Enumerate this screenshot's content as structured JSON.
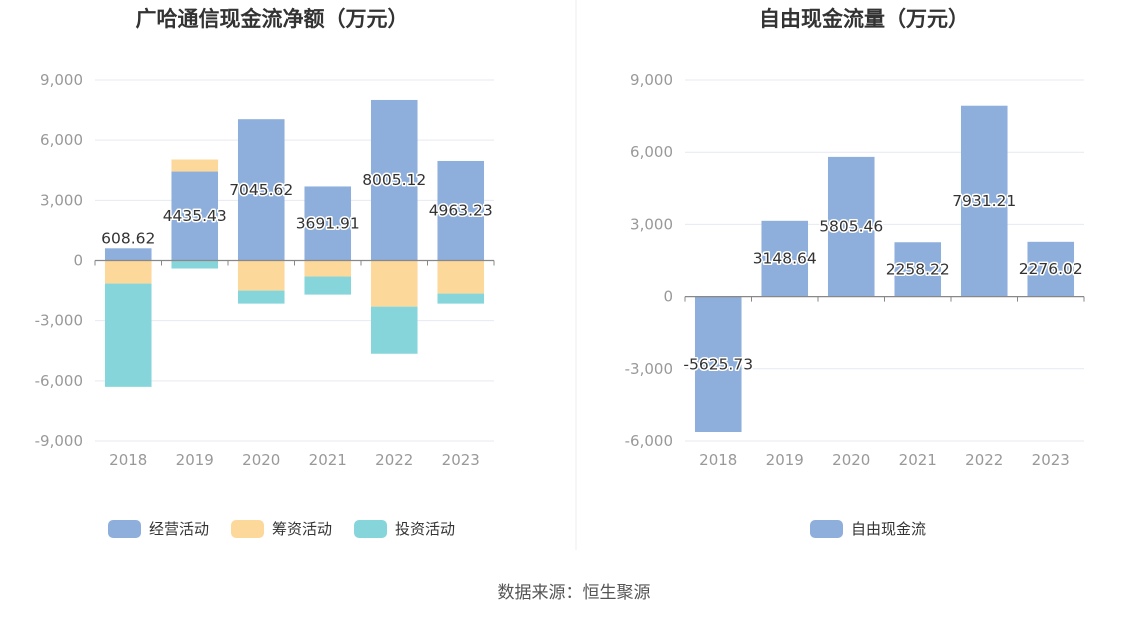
{
  "footer": {
    "source": "数据来源：恒生聚源"
  },
  "colors": {
    "operating": "#8eaedb",
    "financing": "#fdd89b",
    "investing": "#86d5da",
    "free_cash_flow": "#8eaedb",
    "grid": "#e6e9f2",
    "axis": "#888888",
    "divider": "#eeeeee"
  },
  "chart_data": [
    {
      "type": "bar",
      "stacked": true,
      "title": "广哈通信现金流净额（万元）",
      "categories": [
        "2018",
        "2019",
        "2020",
        "2021",
        "2022",
        "2023"
      ],
      "ylim": [
        -9000,
        9000
      ],
      "yticks": [
        9000,
        6000,
        3000,
        0,
        -3000,
        -6000,
        -9000
      ],
      "ytick_labels": [
        "9,000",
        "6,000",
        "3,000",
        "0",
        "-3,000",
        "-6,000",
        "-9,000"
      ],
      "grid": true,
      "legend_position": "bottom",
      "series": [
        {
          "name": "经营活动",
          "color_key": "operating",
          "values": [
            608.62,
            4435.43,
            7045.62,
            3691.91,
            8005.12,
            4963.23
          ],
          "labels": [
            "608.62",
            "4435.43",
            "7045.62",
            "3691.91",
            "8005.12",
            "4963.23"
          ]
        },
        {
          "name": "筹资活动",
          "color_key": "financing",
          "values": [
            -1150,
            600,
            -1500,
            -800,
            -2300,
            -1650
          ]
        },
        {
          "name": "投资活动",
          "color_key": "investing",
          "values": [
            -5150,
            -400,
            -650,
            -900,
            -2350,
            -500
          ]
        }
      ]
    },
    {
      "type": "bar",
      "stacked": false,
      "title": "自由现金流量（万元）",
      "categories": [
        "2018",
        "2019",
        "2020",
        "2021",
        "2022",
        "2023"
      ],
      "ylim": [
        -6000,
        9000
      ],
      "yticks": [
        9000,
        6000,
        3000,
        0,
        -3000,
        -6000
      ],
      "ytick_labels": [
        "9,000",
        "6,000",
        "3,000",
        "0",
        "-3,000",
        "-6,000"
      ],
      "grid": true,
      "legend_position": "bottom",
      "series": [
        {
          "name": "自由现金流",
          "color_key": "free_cash_flow",
          "values": [
            -5625.73,
            3148.64,
            5805.46,
            2258.22,
            7931.21,
            2276.02
          ],
          "labels": [
            "-5625.73",
            "3148.64",
            "5805.46",
            "2258.22",
            "7931.21",
            "2276.02"
          ]
        }
      ]
    }
  ]
}
